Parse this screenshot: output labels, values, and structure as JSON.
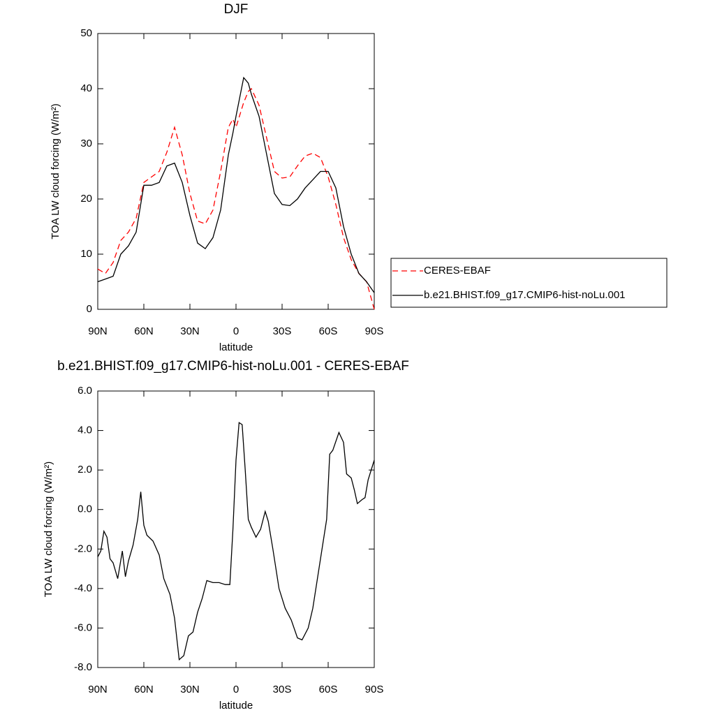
{
  "chart_data": [
    {
      "type": "line",
      "title": "DJF",
      "x_label": "latitude",
      "y_label": "TOA LW cloud forcing (W/m²)",
      "x": [
        90,
        85,
        80,
        75,
        70,
        65,
        60,
        55,
        50,
        45,
        40,
        35,
        30,
        25,
        20,
        15,
        10,
        5,
        2,
        0,
        -5,
        -8,
        -10,
        -15,
        -20,
        -25,
        -30,
        -35,
        -40,
        -45,
        -50,
        -55,
        -60,
        -65,
        -70,
        -75,
        -80,
        -85,
        -90
      ],
      "series": [
        {
          "name": "CERES-EBAF",
          "color": "#ff0000",
          "dashed": true,
          "values": [
            7.3,
            6.5,
            8.5,
            12.5,
            14,
            16.5,
            23,
            24,
            25,
            28.5,
            33,
            28,
            21,
            16,
            15.5,
            18,
            25,
            33,
            34.5,
            33,
            37.5,
            39.5,
            40,
            37,
            31,
            25,
            23.8,
            24,
            26,
            27.8,
            28.3,
            27.5,
            24,
            19,
            13,
            9,
            6.5,
            5,
            0
          ]
        },
        {
          "name": "b.e21.BHIST.f09_g17.CMIP6-hist-noLu.001",
          "color": "#000000",
          "dashed": false,
          "values": [
            5,
            5.5,
            6,
            10,
            11.5,
            14,
            22.5,
            22.5,
            23,
            26,
            26.5,
            23,
            17,
            12,
            11,
            13,
            18,
            28,
            32,
            35,
            42,
            41,
            39,
            35,
            28,
            21,
            19,
            18.8,
            20,
            22,
            23.5,
            25,
            25,
            22,
            15,
            10,
            6.5,
            5,
            3
          ]
        }
      ],
      "xlim": [
        90,
        -90
      ],
      "xticks": [
        {
          "value": 90,
          "label": "90N"
        },
        {
          "value": 60,
          "label": "60N"
        },
        {
          "value": 30,
          "label": "30N"
        },
        0,
        {
          "value": -30,
          "label": "30S"
        },
        {
          "value": -60,
          "label": "60S"
        },
        {
          "value": -90,
          "label": "90S"
        }
      ],
      "ylim": [
        0,
        50
      ],
      "yticks": [
        0,
        10,
        20,
        30,
        40,
        50
      ],
      "legend": "right"
    },
    {
      "type": "line",
      "title": "b.e21.BHIST.f09_g17.CMIP6-hist-noLu.001 - CERES-EBAF",
      "x_label": "latitude",
      "y_label": "TOA LW cloud forcing (W/m²)",
      "x": [
        90,
        88,
        86,
        84,
        82,
        80,
        77,
        74,
        72,
        70,
        67,
        64,
        62,
        60,
        58,
        54,
        50,
        47,
        43,
        40,
        37,
        34,
        31,
        28,
        25,
        22,
        19,
        15,
        11,
        7,
        4,
        2,
        0,
        -2,
        -4,
        -6,
        -8,
        -10,
        -13,
        -16,
        -19,
        -21,
        -24,
        -28,
        -32,
        -36,
        -40,
        -43,
        -47,
        -50,
        -55,
        -59,
        -61,
        -63,
        -67,
        -70,
        -72,
        -75,
        -77,
        -79,
        -82,
        -84,
        -86,
        -90
      ],
      "color": "#000000",
      "values": [
        -2.4,
        -2.1,
        -1.1,
        -1.4,
        -2.5,
        -2.7,
        -3.5,
        -2.1,
        -3.4,
        -2.6,
        -1.8,
        -0.5,
        0.9,
        -0.8,
        -1.3,
        -1.6,
        -2.3,
        -3.5,
        -4.3,
        -5.5,
        -7.6,
        -7.4,
        -6.4,
        -6.2,
        -5.2,
        -4.5,
        -3.6,
        -3.7,
        -3.7,
        -3.8,
        -3.8,
        -1.0,
        2.5,
        4.4,
        4.3,
        2.0,
        -0.5,
        -0.9,
        -1.4,
        -1.0,
        -0.1,
        -0.6,
        -2.0,
        -4.0,
        -5.0,
        -5.6,
        -6.5,
        -6.6,
        -6.0,
        -5.0,
        -2.5,
        -0.5,
        2.8,
        3.0,
        3.9,
        3.4,
        1.8,
        1.6,
        1.0,
        0.3,
        0.5,
        0.6,
        1.5,
        2.5
      ],
      "xlim": [
        90,
        -90
      ],
      "xticks": [
        {
          "value": 90,
          "label": "90N"
        },
        {
          "value": 60,
          "label": "60N"
        },
        {
          "value": 30,
          "label": "30N"
        },
        0,
        {
          "value": -30,
          "label": "30S"
        },
        {
          "value": -60,
          "label": "60S"
        },
        {
          "value": -90,
          "label": "90S"
        }
      ],
      "ylim": [
        -8,
        6
      ],
      "yticks": [
        {
          "value": -8,
          "label": "-8.0"
        },
        {
          "value": -6,
          "label": "-6.0"
        },
        {
          "value": -4,
          "label": "-4.0"
        },
        {
          "value": -2,
          "label": "-2.0"
        },
        {
          "value": 0,
          "label": "0.0"
        },
        {
          "value": 2,
          "label": "2.0"
        },
        {
          "value": 4,
          "label": "4.0"
        },
        {
          "value": 6,
          "label": "6.0"
        }
      ]
    }
  ]
}
